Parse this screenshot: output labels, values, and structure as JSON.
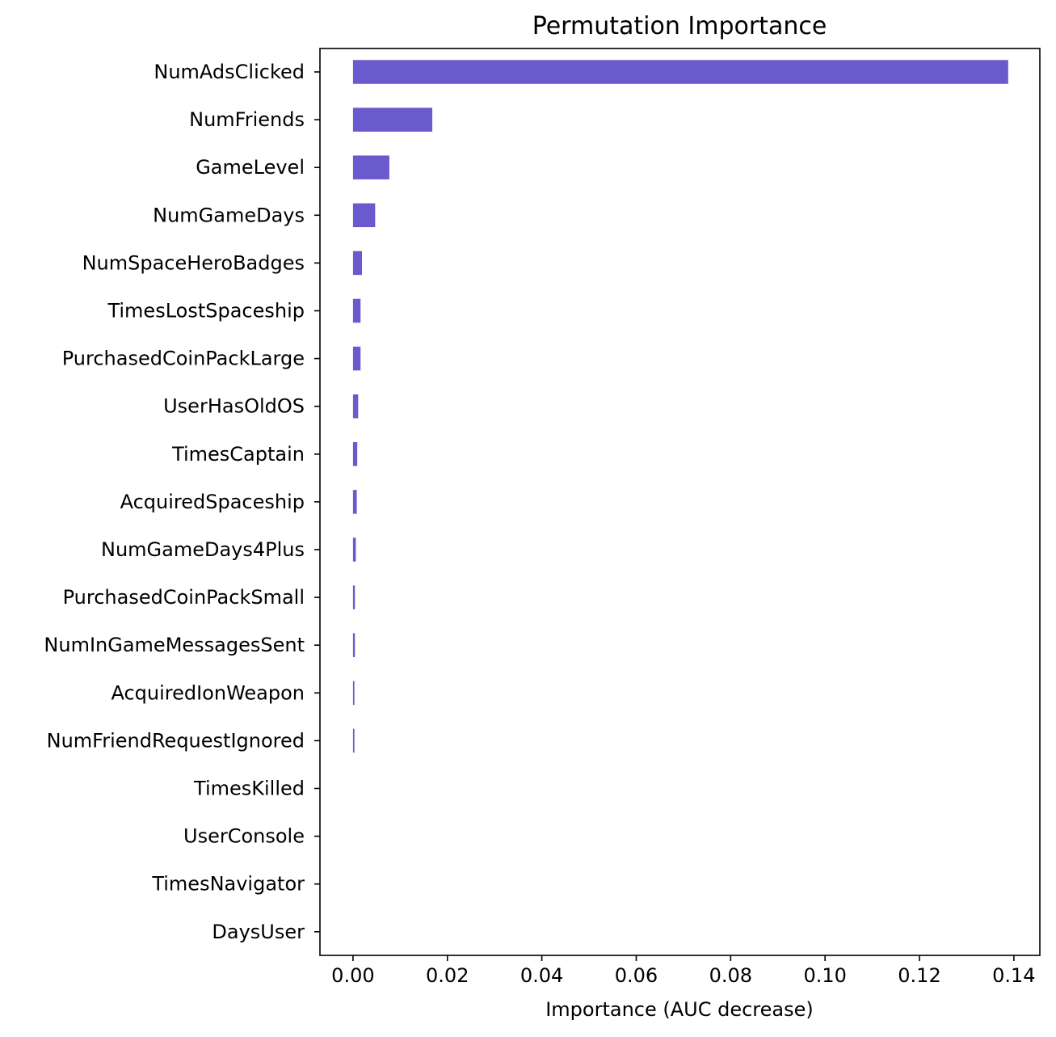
{
  "chart_data": {
    "type": "bar",
    "orientation": "horizontal",
    "title": "Permutation Importance",
    "xlabel": "Importance (AUC decrease)",
    "ylabel": "",
    "xlim": [
      -0.007,
      0.1455
    ],
    "x_ticks": [
      0.0,
      0.02,
      0.04,
      0.06,
      0.08,
      0.1,
      0.12,
      0.14
    ],
    "x_tick_labels": [
      "0.00",
      "0.02",
      "0.04",
      "0.06",
      "0.08",
      "0.10",
      "0.12",
      "0.14"
    ],
    "grid": false,
    "bar_color": "#6A5ACD",
    "categories": [
      "NumAdsClicked",
      "NumFriends",
      "GameLevel",
      "NumGameDays",
      "NumSpaceHeroBadges",
      "TimesLostSpaceship",
      "PurchasedCoinPackLarge",
      "UserHasOldOS",
      "TimesCaptain",
      "AcquiredSpaceship",
      "NumGameDays4Plus",
      "PurchasedCoinPackSmall",
      "NumInGameMessagesSent",
      "AcquiredIonWeapon",
      "NumFriendRequestIgnored",
      "TimesKilled",
      "UserConsole",
      "TimesNavigator",
      "DaysUser"
    ],
    "values": [
      0.1388,
      0.0168,
      0.0077,
      0.0047,
      0.0019,
      0.0016,
      0.0016,
      0.0011,
      0.0009,
      0.0008,
      0.0006,
      0.0004,
      0.0004,
      0.0003,
      0.0003,
      0.0,
      0.0,
      0.0,
      0.0
    ]
  }
}
